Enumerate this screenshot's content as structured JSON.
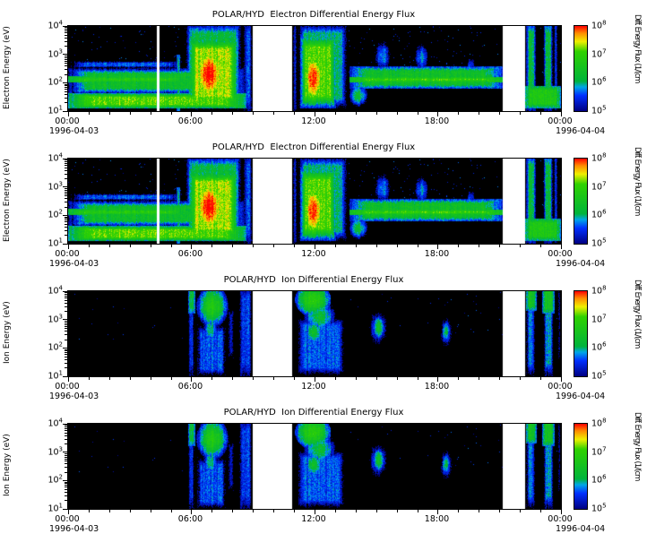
{
  "page": {
    "background": "#ffffff"
  },
  "chart_data": {
    "type": "heatmap",
    "panels": [
      {
        "title": "POLAR/HYD  Electron Differential Energy Flux",
        "ylabel": "Electron Energy (eV)",
        "species": "electron",
        "ylog_range": [
          1,
          4
        ],
        "y_ticks": [
          "10^1",
          "10^2",
          "10^3",
          "10^4"
        ],
        "x_ticks": [
          "00:00",
          "06:00",
          "12:00",
          "18:00",
          "00:00"
        ],
        "x_range_hours": [
          0,
          24
        ],
        "date_left": "1996-04-03",
        "date_right": "1996-04-04",
        "colorbar_label": "Diff. Energy Flux (1/(cm",
        "colorbar_ticks": [
          "10^5",
          "10^6",
          "10^7",
          "10^8"
        ],
        "colorbar_log_range": [
          5,
          8
        ]
      },
      {
        "title": "POLAR/HYD  Electron Differential Energy Flux",
        "ylabel": "Electron Energy (eV)",
        "species": "electron",
        "ylog_range": [
          1,
          4
        ],
        "y_ticks": [
          "10^1",
          "10^2",
          "10^3",
          "10^4"
        ],
        "x_ticks": [
          "00:00",
          "06:00",
          "12:00",
          "18:00",
          "00:00"
        ],
        "x_range_hours": [
          0,
          24
        ],
        "date_left": "1996-04-03",
        "date_right": "1996-04-04",
        "colorbar_label": "Diff. Energy Flux (1/(cm",
        "colorbar_ticks": [
          "10^5",
          "10^6",
          "10^7",
          "10^8"
        ],
        "colorbar_log_range": [
          5,
          8
        ]
      },
      {
        "title": "POLAR/HYD  Ion Differential Energy Flux",
        "ylabel": "Ion Energy (eV)",
        "species": "ion",
        "ylog_range": [
          1,
          4
        ],
        "y_ticks": [
          "10^1",
          "10^2",
          "10^3",
          "10^4"
        ],
        "x_ticks": [
          "00:00",
          "06:00",
          "12:00",
          "18:00",
          "00:00"
        ],
        "x_range_hours": [
          0,
          24
        ],
        "date_left": "1996-04-03",
        "date_right": "1996-04-04",
        "colorbar_label": "Diff. Energy Flux (1/(cm",
        "colorbar_ticks": [
          "10^5",
          "10^6",
          "10^7",
          "10^8"
        ],
        "colorbar_log_range": [
          5,
          8
        ]
      },
      {
        "title": "POLAR/HYD  Ion Differential Energy Flux",
        "ylabel": "Ion Energy (eV)",
        "species": "ion",
        "ylog_range": [
          1,
          4
        ],
        "y_ticks": [
          "10^1",
          "10^2",
          "10^3",
          "10^4"
        ],
        "x_ticks": [
          "00:00",
          "06:00",
          "12:00",
          "18:00",
          "00:00"
        ],
        "x_range_hours": [
          0,
          24
        ],
        "date_left": "1996-04-03",
        "date_right": "1996-04-04",
        "colorbar_label": "Diff. Energy Flux (1/(cm",
        "colorbar_ticks": [
          "10^5",
          "10^6",
          "10^7",
          "10^8"
        ],
        "colorbar_log_range": [
          5,
          8
        ]
      }
    ],
    "colormap": [
      [
        5.0,
        "#000082"
      ],
      [
        5.55,
        "#0030ff"
      ],
      [
        5.85,
        "#00a8e8"
      ],
      [
        6.05,
        "#00b43c"
      ],
      [
        7.1,
        "#30d200"
      ],
      [
        7.45,
        "#f0f000"
      ],
      [
        7.75,
        "#ff8c00"
      ],
      [
        8.0,
        "#ff0000"
      ]
    ],
    "spectra": {
      "electron": {
        "speckle": 0.012,
        "gaps": [
          [
            4.32,
            4.44
          ],
          [
            8.99,
            10.93
          ],
          [
            21.18,
            22.26
          ]
        ],
        "features": [
          {
            "s": "r",
            "t": [
              0,
              8.7
            ],
            "e": [
              1.1,
              1.62
            ],
            "v": 7.1,
            "f": 0.8
          },
          {
            "s": "r",
            "t": [
              0,
              8.7
            ],
            "e": [
              1.62,
              2.5
            ],
            "v": 6.35,
            "f": 0.9
          },
          {
            "s": "r",
            "t": [
              0,
              5.7
            ],
            "e": [
              2.0,
              2.22
            ],
            "v": 6.8,
            "f": 0.4
          },
          {
            "s": "r",
            "t": [
              0,
              5.7
            ],
            "e": [
              2.5,
              2.78
            ],
            "v": 5.6,
            "f": 0.8
          },
          {
            "s": "r",
            "t": [
              5.3,
              5.45
            ],
            "e": [
              0.9,
              3.0
            ],
            "v": 6.3,
            "f": 0.5
          },
          {
            "s": "r",
            "t": [
              5.6,
              8.55
            ],
            "e": [
              0.9,
              4.3
            ],
            "v": 6.2,
            "f": 1.4
          },
          {
            "s": "r",
            "t": [
              5.85,
              8.3
            ],
            "e": [
              1.1,
              3.6
            ],
            "v": 7.3,
            "f": 1.2
          },
          {
            "s": "e",
            "t": [
              6.05,
              7.7
            ],
            "e": [
              1.3,
              3.3
            ],
            "v": 8.1,
            "f": 1.1
          },
          {
            "s": "r",
            "t": [
              8.55,
              8.97
            ],
            "e": [
              0.9,
              4.3
            ],
            "v": 5.5,
            "f": 0.5
          },
          {
            "s": "r",
            "t": [
              10.95,
              11.15
            ],
            "e": [
              0.9,
              4.3
            ],
            "v": 5.4,
            "f": 0.4
          },
          {
            "s": "r",
            "t": [
              11.1,
              13.7
            ],
            "e": [
              0.9,
              4.3
            ],
            "v": 6.0,
            "f": 1.4
          },
          {
            "s": "r",
            "t": [
              11.3,
              13.05
            ],
            "e": [
              1.1,
              3.7
            ],
            "v": 7.1,
            "f": 1.2
          },
          {
            "s": "e",
            "t": [
              11.45,
              12.45
            ],
            "e": [
              1.2,
              3.1
            ],
            "v": 8.0,
            "f": 1.0
          },
          {
            "s": "r",
            "t": [
              13.7,
              21.2
            ],
            "e": [
              1.78,
              2.58
            ],
            "v": 6.4,
            "f": 0.7
          },
          {
            "s": "r",
            "t": [
              13.7,
              21.2
            ],
            "e": [
              2.02,
              2.2
            ],
            "v": 7.0,
            "f": 0.4
          },
          {
            "s": "e",
            "t": [
              13.65,
              14.6
            ],
            "e": [
              1.15,
              1.95
            ],
            "v": 6.3,
            "f": 0.8
          },
          {
            "s": "e",
            "t": [
              14.8,
              15.8
            ],
            "e": [
              2.3,
              3.6
            ],
            "v": 5.8,
            "f": 0.9
          },
          {
            "s": "e",
            "t": [
              16.8,
              17.6
            ],
            "e": [
              2.3,
              3.5
            ],
            "v": 5.8,
            "f": 0.9
          },
          {
            "s": "e",
            "t": [
              19.3,
              19.9
            ],
            "e": [
              2.2,
              3.0
            ],
            "v": 5.5,
            "f": 0.8
          },
          {
            "s": "r",
            "t": [
              22.3,
              22.78
            ],
            "e": [
              0.9,
              4.3
            ],
            "v": 6.2,
            "f": 0.9
          },
          {
            "s": "r",
            "t": [
              23.15,
              23.6
            ],
            "e": [
              0.9,
              4.3
            ],
            "v": 6.2,
            "f": 0.9
          },
          {
            "s": "r",
            "t": [
              23.65,
              23.85
            ],
            "e": [
              0.9,
              4.3
            ],
            "v": 5.5,
            "f": 0.5
          },
          {
            "s": "r",
            "t": [
              22.25,
              24
            ],
            "e": [
              1.1,
              1.9
            ],
            "v": 6.7,
            "f": 0.6
          }
        ]
      },
      "ion": {
        "speckle": 0.003,
        "gaps": [
          [
            8.99,
            10.93
          ],
          [
            21.18,
            22.26
          ]
        ],
        "features": [
          {
            "s": "r",
            "t": [
              5.85,
              6.15
            ],
            "e": [
              0.9,
              4.3
            ],
            "v": 5.5,
            "f": 0.5
          },
          {
            "s": "r",
            "t": [
              5.85,
              6.2
            ],
            "e": [
              3.2,
              4.25
            ],
            "v": 6.3,
            "f": 0.5
          },
          {
            "s": "e",
            "t": [
              6.25,
              7.8
            ],
            "e": [
              2.7,
              4.25
            ],
            "v": 6.8,
            "f": 0.9
          },
          {
            "s": "r",
            "t": [
              6.2,
              7.75
            ],
            "e": [
              0.9,
              2.9
            ],
            "v": 5.6,
            "f": 0.9
          },
          {
            "s": "e",
            "t": [
              6.55,
              7.35
            ],
            "e": [
              2.1,
              3.2
            ],
            "v": 6.1,
            "f": 0.8
          },
          {
            "s": "r",
            "t": [
              7.78,
              8.1
            ],
            "e": [
              1.5,
              3.5
            ],
            "v": 5.3,
            "f": 0.6
          },
          {
            "s": "r",
            "t": [
              8.35,
              8.95
            ],
            "e": [
              0.9,
              4.3
            ],
            "v": 5.5,
            "f": 0.5
          },
          {
            "s": "e",
            "t": [
              11.05,
              12.8
            ],
            "e": [
              3.1,
              4.3
            ],
            "v": 6.9,
            "f": 0.8
          },
          {
            "s": "e",
            "t": [
              11.4,
              13.1
            ],
            "e": [
              2.5,
              3.7
            ],
            "v": 6.3,
            "f": 0.9
          },
          {
            "s": "r",
            "t": [
              11.05,
              13.6
            ],
            "e": [
              0.9,
              3.2
            ],
            "v": 5.6,
            "f": 1.0
          },
          {
            "s": "e",
            "t": [
              11.55,
              12.4
            ],
            "e": [
              2.1,
              3.0
            ],
            "v": 6.4,
            "f": 0.8
          },
          {
            "s": "e",
            "t": [
              14.55,
              15.65
            ],
            "e": [
              1.9,
              3.5
            ],
            "v": 5.7,
            "f": 0.9
          },
          {
            "s": "e",
            "t": [
              14.85,
              15.4
            ],
            "e": [
              2.3,
              3.15
            ],
            "v": 6.5,
            "f": 0.7
          },
          {
            "s": "e",
            "t": [
              18.05,
              18.8
            ],
            "e": [
              1.9,
              3.2
            ],
            "v": 5.6,
            "f": 0.8
          },
          {
            "s": "e",
            "t": [
              18.2,
              18.6
            ],
            "e": [
              2.2,
              2.95
            ],
            "v": 6.1,
            "f": 0.6
          },
          {
            "s": "r",
            "t": [
              22.3,
              22.75
            ],
            "e": [
              0.9,
              4.3
            ],
            "v": 5.7,
            "f": 0.8
          },
          {
            "s": "r",
            "t": [
              22.3,
              22.8
            ],
            "e": [
              3.3,
              4.25
            ],
            "v": 6.5,
            "f": 0.6
          },
          {
            "s": "r",
            "t": [
              23.15,
              23.65
            ],
            "e": [
              0.9,
              4.3
            ],
            "v": 5.8,
            "f": 0.8
          },
          {
            "s": "r",
            "t": [
              23.1,
              23.7
            ],
            "e": [
              3.2,
              4.25
            ],
            "v": 6.5,
            "f": 0.6
          },
          {
            "s": "r",
            "t": [
              23.85,
              24
            ],
            "e": [
              1.5,
              4.3
            ],
            "v": 5.3,
            "f": 0.5
          }
        ]
      }
    }
  }
}
